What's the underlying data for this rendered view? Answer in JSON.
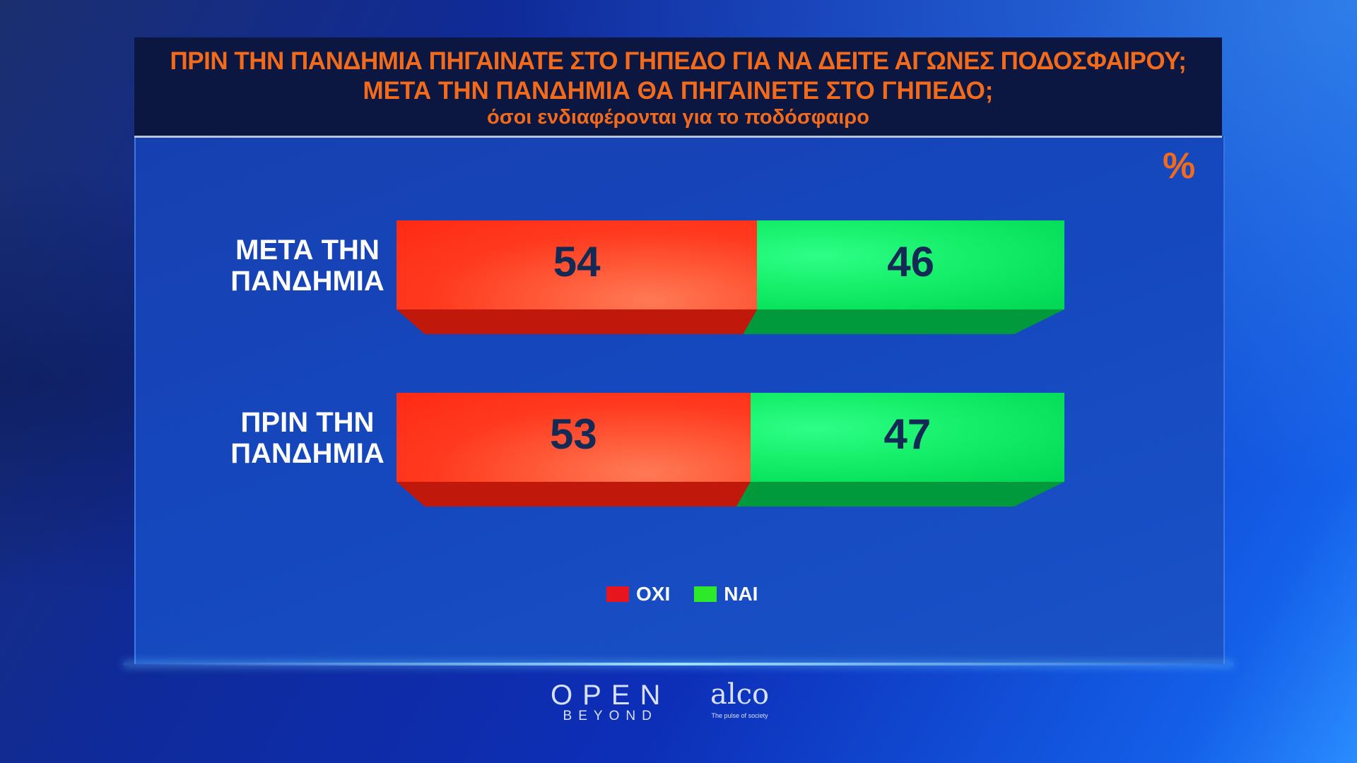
{
  "header": {
    "title_line1": "ΠΡΙΝ ΤΗΝ ΠΑΝΔΗΜΙΑ ΠΗΓΑΙΝΑΤΕ ΣΤΟ ΓΗΠΕΔΟ ΓΙΑ ΝΑ ΔΕΙΤΕ ΑΓΩΝΕΣ ΠΟΔΟΣΦΑΙΡΟΥ;",
    "title_line2": "ΜΕΤΑ ΤΗΝ ΠΑΝΔΗΜΙΑ ΘΑ ΠΗΓΑΙΝΕΤΕ ΣΤΟ ΓΗΠΕΔΟ;",
    "subtitle": "όσοι ενδιαφέρονται για το ποδόσφαιρο"
  },
  "chart_data": {
    "type": "bar",
    "orientation": "horizontal",
    "stacked": true,
    "unit": "%",
    "categories": [
      {
        "line1": "ΜΕΤΑ ΤΗΝ",
        "line2": "ΠΑΝΔΗΜΙΑ"
      },
      {
        "line1": "ΠΡΙΝ ΤΗΝ",
        "line2": "ΠΑΝΔΗΜΙΑ"
      }
    ],
    "series": [
      {
        "name": "ΟΧΙ",
        "color": "#ff3a1e",
        "values": [
          54,
          53
        ]
      },
      {
        "name": "ΝΑΙ",
        "color": "#12ec66",
        "values": [
          46,
          47
        ]
      }
    ],
    "legend_position": "bottom",
    "grid": false
  },
  "legend_colors": {
    "oxi": "#e8141e",
    "nai": "#2ee82a"
  },
  "logos": {
    "open_main": "OPEN",
    "open_sub": "BEYOND",
    "alco_main": "alco",
    "alco_sub": "The pulse of society"
  }
}
